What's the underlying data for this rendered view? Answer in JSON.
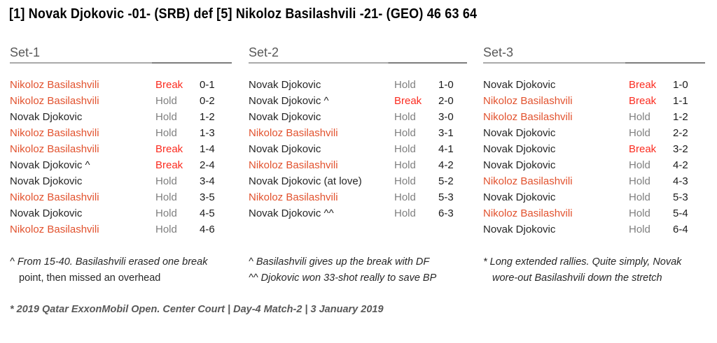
{
  "title": "[1] Novak Djokovic -01- (SRB) def [5] Nikoloz Basilashvili -21- (GEO) 46 63 64",
  "palette": {
    "name_djokovic": "#262626",
    "name_basilashvili": "#e2522e",
    "result_break": "#fb2c20",
    "result_hold": "#7f7f7f",
    "set_header": "#595959",
    "score": "#1a1a1a",
    "footnote": "#262626",
    "footer": "#595959",
    "underline_light": "#a9a9a9",
    "underline_dark": "#7d7d7d"
  },
  "sets": [
    {
      "label": "Set-1",
      "games": [
        {
          "server": "Nikoloz Basilashvili",
          "result": "Break",
          "score": "0-1"
        },
        {
          "server": "Nikoloz Basilashvili",
          "result": "Hold",
          "score": "0-2"
        },
        {
          "server": "Novak Djokovic",
          "result": "Hold",
          "score": "1-2"
        },
        {
          "server": "Nikoloz Basilashvili",
          "result": "Hold",
          "score": "1-3"
        },
        {
          "server": "Nikoloz Basilashvili",
          "result": "Break",
          "score": "1-4"
        },
        {
          "server": "Novak Djokovic ^",
          "result": "Break",
          "score": "2-4"
        },
        {
          "server": "Novak Djokovic",
          "result": "Hold",
          "score": "3-4"
        },
        {
          "server": "Nikoloz Basilashvili",
          "result": "Hold",
          "score": "3-5"
        },
        {
          "server": "Novak Djokovic",
          "result": "Hold",
          "score": "4-5"
        },
        {
          "server": "Nikoloz Basilashvili",
          "result": "Hold",
          "score": "4-6"
        }
      ],
      "notes": [
        "^ From 15-40. Basilashvili erased one break",
        "point, then missed an overhead"
      ]
    },
    {
      "label": "Set-2",
      "games": [
        {
          "server": "Novak Djokovic",
          "result": "Hold",
          "score": "1-0"
        },
        {
          "server": "Novak Djokovic ^",
          "result": "Break",
          "score": "2-0"
        },
        {
          "server": "Novak Djokovic",
          "result": "Hold",
          "score": "3-0"
        },
        {
          "server": "Nikoloz Basilashvili",
          "result": "Hold",
          "score": "3-1"
        },
        {
          "server": "Novak Djokovic",
          "result": "Hold",
          "score": "4-1"
        },
        {
          "server": "Nikoloz Basilashvili",
          "result": "Hold",
          "score": "4-2"
        },
        {
          "server": "Novak Djokovic (at love)",
          "result": "Hold",
          "score": "5-2"
        },
        {
          "server": "Nikoloz Basilashvili",
          "result": "Hold",
          "score": "5-3"
        },
        {
          "server": "Novak Djokovic ^^",
          "result": "Hold",
          "score": "6-3"
        }
      ],
      "notes": [
        "^ Basilashvili gives up the break with DF",
        "^^ Djokovic won 33-shot really to save BP"
      ]
    },
    {
      "label": "Set-3",
      "games": [
        {
          "server": "Novak Djokovic",
          "result": "Break",
          "score": "1-0"
        },
        {
          "server": "Nikoloz Basilashvili",
          "result": "Break",
          "score": "1-1"
        },
        {
          "server": "Nikoloz Basilashvili",
          "result": "Hold",
          "score": "1-2"
        },
        {
          "server": "Novak Djokovic",
          "result": "Hold",
          "score": "2-2"
        },
        {
          "server": "Novak Djokovic",
          "result": "Break",
          "score": "3-2"
        },
        {
          "server": "Novak Djokovic",
          "result": "Hold",
          "score": "4-2"
        },
        {
          "server": "Nikoloz Basilashvili",
          "result": "Hold",
          "score": "4-3"
        },
        {
          "server": "Novak Djokovic",
          "result": "Hold",
          "score": "5-3"
        },
        {
          "server": "Nikoloz Basilashvili",
          "result": "Hold",
          "score": "5-4"
        },
        {
          "server": "Novak Djokovic",
          "result": "Hold",
          "score": "6-4"
        }
      ],
      "notes": [
        "* Long extended rallies. Quite simply, Novak",
        "wore-out Basilashvili down the stretch"
      ]
    }
  ],
  "footer": "* 2019 Qatar ExxonMobil Open. Center Court | Day-4 Match-2 | 3 January 2019"
}
